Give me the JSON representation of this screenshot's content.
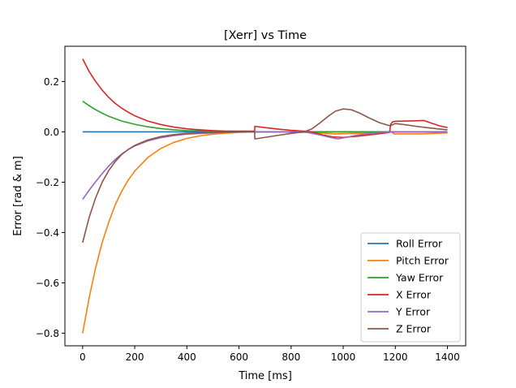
{
  "chart_data": {
    "type": "line",
    "title": "[Xerr] vs Time",
    "xlabel": "Time [ms]",
    "ylabel": "Error [rad & m]",
    "xlim": [
      -68,
      1470
    ],
    "ylim": [
      -0.85,
      0.34
    ],
    "xticks": [
      0,
      200,
      400,
      600,
      800,
      1000,
      1200,
      1400
    ],
    "yticks": [
      -0.8,
      -0.6,
      -0.4,
      -0.2,
      0.0,
      0.2
    ],
    "xtick_labels": [
      "0",
      "200",
      "400",
      "600",
      "800",
      "1000",
      "1200",
      "1400"
    ],
    "ytick_labels": [
      "−0.8",
      "−0.6",
      "−0.4",
      "−0.2",
      "0.0",
      "0.2"
    ],
    "grid": false,
    "legend_position": "lower-right",
    "series": [
      {
        "name": "Roll Error",
        "color": "#1f77b4",
        "points": [
          [
            0,
            0.0
          ],
          [
            200,
            0.0
          ],
          [
            400,
            0.0
          ],
          [
            600,
            0.0
          ],
          [
            800,
            0.0
          ],
          [
            1000,
            0.0
          ],
          [
            1200,
            0.0
          ],
          [
            1400,
            0.0
          ]
        ]
      },
      {
        "name": "Pitch Error",
        "color": "#ff7f0e",
        "points": [
          [
            0,
            -0.8
          ],
          [
            25,
            -0.66
          ],
          [
            50,
            -0.54
          ],
          [
            75,
            -0.44
          ],
          [
            100,
            -0.36
          ],
          [
            125,
            -0.29
          ],
          [
            150,
            -0.236
          ],
          [
            175,
            -0.192
          ],
          [
            200,
            -0.156
          ],
          [
            250,
            -0.102
          ],
          [
            300,
            -0.066
          ],
          [
            350,
            -0.042
          ],
          [
            400,
            -0.026
          ],
          [
            450,
            -0.016
          ],
          [
            500,
            -0.009
          ],
          [
            550,
            -0.005
          ],
          [
            600,
            -0.002
          ],
          [
            660,
            0.0
          ],
          [
            800,
            0.0
          ],
          [
            900,
            -0.004
          ],
          [
            970,
            -0.008
          ],
          [
            1050,
            -0.006
          ],
          [
            1150,
            -0.002
          ],
          [
            1185,
            0.0
          ],
          [
            1195,
            -0.008
          ],
          [
            1300,
            -0.008
          ],
          [
            1400,
            -0.004
          ]
        ]
      },
      {
        "name": "Yaw Error",
        "color": "#2ca02c",
        "points": [
          [
            0,
            0.122
          ],
          [
            25,
            0.104
          ],
          [
            50,
            0.088
          ],
          [
            75,
            0.074
          ],
          [
            100,
            0.062
          ],
          [
            150,
            0.043
          ],
          [
            200,
            0.03
          ],
          [
            250,
            0.02
          ],
          [
            300,
            0.013
          ],
          [
            350,
            0.008
          ],
          [
            400,
            0.005
          ],
          [
            500,
            0.002
          ],
          [
            600,
            0.0
          ],
          [
            800,
            0.0
          ],
          [
            1000,
            0.0
          ],
          [
            1200,
            0.0
          ],
          [
            1400,
            0.0
          ]
        ]
      },
      {
        "name": "X Error",
        "color": "#d62728",
        "points": [
          [
            0,
            0.29
          ],
          [
            25,
            0.24
          ],
          [
            50,
            0.2
          ],
          [
            75,
            0.166
          ],
          [
            100,
            0.137
          ],
          [
            125,
            0.113
          ],
          [
            150,
            0.094
          ],
          [
            175,
            0.078
          ],
          [
            200,
            0.064
          ],
          [
            250,
            0.043
          ],
          [
            300,
            0.029
          ],
          [
            350,
            0.019
          ],
          [
            400,
            0.012
          ],
          [
            450,
            0.008
          ],
          [
            500,
            0.005
          ],
          [
            550,
            0.003
          ],
          [
            600,
            0.003
          ],
          [
            660,
            0.003
          ],
          [
            661,
            0.022
          ],
          [
            700,
            0.017
          ],
          [
            750,
            0.011
          ],
          [
            800,
            0.006
          ],
          [
            850,
            0.003
          ],
          [
            880,
            0.0
          ],
          [
            920,
            -0.012
          ],
          [
            960,
            -0.02
          ],
          [
            1000,
            -0.022
          ],
          [
            1050,
            -0.018
          ],
          [
            1100,
            -0.012
          ],
          [
            1150,
            -0.006
          ],
          [
            1178,
            -0.002
          ],
          [
            1182,
            0.03
          ],
          [
            1190,
            0.04
          ],
          [
            1200,
            0.042
          ],
          [
            1250,
            0.043
          ],
          [
            1310,
            0.045
          ],
          [
            1340,
            0.034
          ],
          [
            1370,
            0.024
          ],
          [
            1400,
            0.017
          ]
        ]
      },
      {
        "name": "Y Error",
        "color": "#9467bd",
        "points": [
          [
            0,
            -0.268
          ],
          [
            25,
            -0.232
          ],
          [
            50,
            -0.198
          ],
          [
            75,
            -0.166
          ],
          [
            100,
            -0.136
          ],
          [
            125,
            -0.11
          ],
          [
            150,
            -0.088
          ],
          [
            175,
            -0.07
          ],
          [
            200,
            -0.056
          ],
          [
            250,
            -0.036
          ],
          [
            300,
            -0.023
          ],
          [
            350,
            -0.015
          ],
          [
            400,
            -0.009
          ],
          [
            500,
            -0.004
          ],
          [
            600,
            -0.001
          ],
          [
            700,
            0.0
          ],
          [
            850,
            0.0
          ],
          [
            900,
            -0.01
          ],
          [
            950,
            -0.022
          ],
          [
            980,
            -0.028
          ],
          [
            1010,
            -0.022
          ],
          [
            1060,
            -0.012
          ],
          [
            1120,
            -0.004
          ],
          [
            1200,
            0.0
          ],
          [
            1400,
            0.0
          ]
        ]
      },
      {
        "name": "Z Error",
        "color": "#8c564b",
        "points": [
          [
            0,
            -0.44
          ],
          [
            25,
            -0.34
          ],
          [
            50,
            -0.262
          ],
          [
            75,
            -0.2
          ],
          [
            100,
            -0.154
          ],
          [
            125,
            -0.118
          ],
          [
            150,
            -0.09
          ],
          [
            175,
            -0.07
          ],
          [
            200,
            -0.054
          ],
          [
            250,
            -0.032
          ],
          [
            300,
            -0.019
          ],
          [
            350,
            -0.011
          ],
          [
            400,
            -0.006
          ],
          [
            500,
            -0.002
          ],
          [
            600,
            0.0
          ],
          [
            660,
            0.0
          ],
          [
            661,
            -0.028
          ],
          [
            700,
            -0.022
          ],
          [
            750,
            -0.014
          ],
          [
            800,
            -0.006
          ],
          [
            850,
            0.0
          ],
          [
            880,
            0.012
          ],
          [
            910,
            0.035
          ],
          [
            940,
            0.06
          ],
          [
            970,
            0.082
          ],
          [
            1000,
            0.091
          ],
          [
            1030,
            0.088
          ],
          [
            1060,
            0.076
          ],
          [
            1100,
            0.055
          ],
          [
            1140,
            0.036
          ],
          [
            1180,
            0.024
          ],
          [
            1200,
            0.033
          ],
          [
            1240,
            0.028
          ],
          [
            1280,
            0.022
          ],
          [
            1320,
            0.017
          ],
          [
            1360,
            0.012
          ],
          [
            1400,
            0.008
          ]
        ]
      }
    ]
  }
}
